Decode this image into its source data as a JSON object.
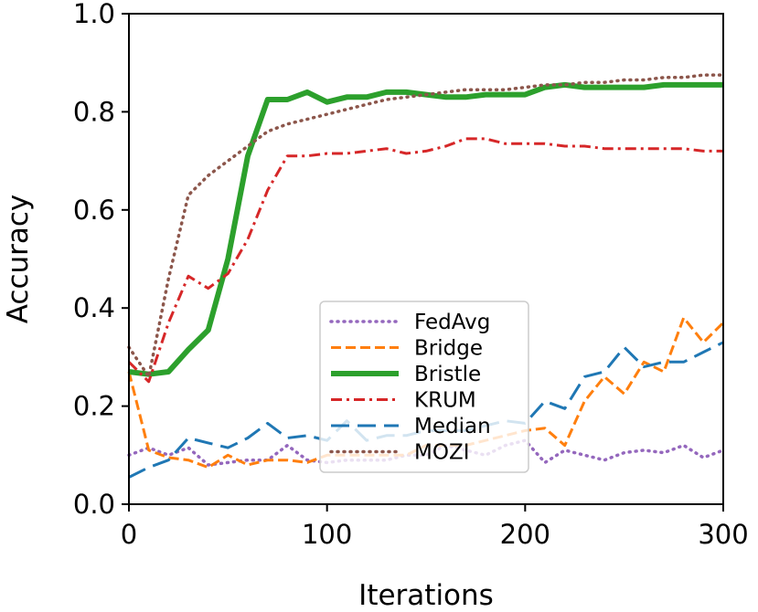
{
  "chart_data": {
    "type": "line",
    "xlabel": "Iterations",
    "ylabel": "Accuracy",
    "xlim": [
      0,
      300
    ],
    "ylim": [
      0.0,
      1.0
    ],
    "x_ticks": [
      "0",
      "100",
      "200",
      "300"
    ],
    "y_ticks": [
      "0.0",
      "0.2",
      "0.4",
      "0.6",
      "0.8",
      "1.0"
    ],
    "grid": false,
    "legend_position": "lower-center",
    "x": [
      0,
      10,
      20,
      30,
      40,
      50,
      60,
      70,
      80,
      90,
      100,
      110,
      120,
      130,
      140,
      150,
      160,
      170,
      180,
      190,
      200,
      210,
      220,
      230,
      240,
      250,
      260,
      270,
      280,
      290,
      300
    ],
    "series": [
      {
        "name": "FedAvg",
        "color": "#9467bd",
        "style": "dotted",
        "values": [
          0.1,
          0.115,
          0.1,
          0.115,
          0.08,
          0.085,
          0.09,
          0.09,
          0.12,
          0.09,
          0.085,
          0.09,
          0.09,
          0.09,
          0.1,
          0.1,
          0.12,
          0.11,
          0.1,
          0.12,
          0.13,
          0.085,
          0.11,
          0.1,
          0.09,
          0.105,
          0.11,
          0.105,
          0.12,
          0.095,
          0.11
        ]
      },
      {
        "name": "Bridge",
        "color": "#ff7f0e",
        "style": "dashed",
        "values": [
          0.27,
          0.11,
          0.095,
          0.09,
          0.075,
          0.1,
          0.08,
          0.09,
          0.09,
          0.085,
          0.1,
          0.1,
          0.1,
          0.1,
          0.1,
          0.12,
          0.12,
          0.12,
          0.13,
          0.14,
          0.15,
          0.155,
          0.12,
          0.21,
          0.26,
          0.225,
          0.29,
          0.27,
          0.38,
          0.33,
          0.37
        ]
      },
      {
        "name": "Bristle",
        "color": "#2ca02c",
        "style": "solid",
        "values": [
          0.27,
          0.265,
          0.27,
          0.315,
          0.355,
          0.5,
          0.71,
          0.825,
          0.825,
          0.84,
          0.82,
          0.83,
          0.83,
          0.84,
          0.84,
          0.835,
          0.83,
          0.83,
          0.835,
          0.835,
          0.835,
          0.85,
          0.855,
          0.85,
          0.85,
          0.85,
          0.85,
          0.855,
          0.855,
          0.855,
          0.855
        ]
      },
      {
        "name": "KRUM",
        "color": "#d62728",
        "style": "dashdot",
        "values": [
          0.29,
          0.25,
          0.37,
          0.465,
          0.44,
          0.47,
          0.54,
          0.64,
          0.71,
          0.71,
          0.715,
          0.715,
          0.72,
          0.725,
          0.715,
          0.72,
          0.73,
          0.745,
          0.745,
          0.735,
          0.735,
          0.735,
          0.73,
          0.73,
          0.725,
          0.725,
          0.725,
          0.725,
          0.725,
          0.72,
          0.72
        ]
      },
      {
        "name": "Median",
        "color": "#1f77b4",
        "style": "dashed-long",
        "values": [
          0.055,
          0.075,
          0.09,
          0.135,
          0.125,
          0.115,
          0.135,
          0.165,
          0.135,
          0.14,
          0.13,
          0.17,
          0.13,
          0.14,
          0.14,
          0.15,
          0.15,
          0.15,
          0.16,
          0.17,
          0.165,
          0.21,
          0.195,
          0.26,
          0.27,
          0.32,
          0.28,
          0.29,
          0.29,
          0.31,
          0.33
        ]
      },
      {
        "name": "MOZI",
        "color": "#8c564b",
        "style": "dotted",
        "values": [
          0.32,
          0.26,
          0.46,
          0.63,
          0.67,
          0.7,
          0.73,
          0.76,
          0.775,
          0.785,
          0.795,
          0.805,
          0.815,
          0.825,
          0.83,
          0.835,
          0.84,
          0.845,
          0.845,
          0.845,
          0.85,
          0.855,
          0.855,
          0.86,
          0.86,
          0.865,
          0.865,
          0.87,
          0.87,
          0.875,
          0.875
        ]
      }
    ]
  }
}
